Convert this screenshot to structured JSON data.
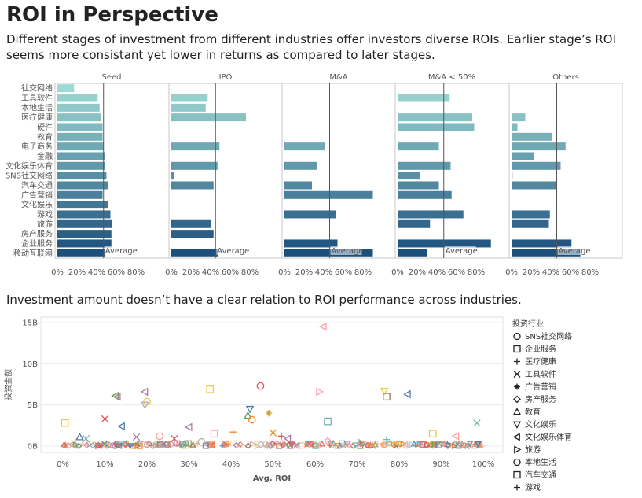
{
  "header": {
    "title": "ROI in Perspective",
    "subtitle": "Different stages of investment from different industries offer investors diverse ROIs. Earlier stage’s ROI seems more consistant yet lower in returns as compared to later stages."
  },
  "scatter_caption": "Investment amount doesn’t have a clear relation to ROI performance across industries.",
  "colors": {
    "panel_border": "#c8c8c8",
    "ref_line": "#555555",
    "bar_gradient": [
      "#9fd9d3",
      "#1b4f7c"
    ]
  },
  "chart_data": [
    {
      "type": "bar",
      "orientation": "horizontal",
      "facets": [
        "Seed",
        "IPO",
        "M&A",
        "M&A < 50%",
        "Others"
      ],
      "categories": [
        "社交网络",
        "工具软件",
        "本地生活",
        "医疗健康",
        "硬件",
        "教育",
        "电子商务",
        "金融",
        "文化娱乐体育",
        "SNS社交网络",
        "汽车交通",
        "广告营销",
        "文化娱乐",
        "游戏",
        "旅游",
        "房产服务",
        "企业服务",
        "移动互联网"
      ],
      "series": [
        {
          "name": "Seed",
          "values": [
            17,
            41,
            43,
            44,
            46,
            46,
            47,
            48,
            48,
            50,
            52,
            46,
            52,
            54,
            56,
            55,
            55,
            48
          ]
        },
        {
          "name": "IPO",
          "values": [
            null,
            37,
            35,
            76,
            null,
            null,
            49,
            null,
            47,
            3,
            43,
            null,
            null,
            null,
            40,
            43,
            null,
            48
          ]
        },
        {
          "name": "M&A",
          "values": [
            null,
            null,
            null,
            null,
            null,
            null,
            41,
            null,
            33,
            null,
            28,
            90,
            null,
            52,
            null,
            null,
            54,
            90
          ]
        },
        {
          "name": "M&A < 50%",
          "values": [
            null,
            53,
            null,
            76,
            78,
            null,
            42,
            null,
            54,
            23,
            42,
            55,
            null,
            67,
            33,
            null,
            95,
            30
          ]
        },
        {
          "name": "Others",
          "values": [
            null,
            null,
            null,
            14,
            6,
            41,
            55,
            23,
            50,
            1,
            45,
            null,
            null,
            39,
            38,
            null,
            61,
            70
          ]
        }
      ],
      "reference_values": [
        47,
        45,
        46,
        47,
        46
      ],
      "reference_label": "Average",
      "xticks": [
        "0%",
        "20%",
        "40%",
        "60%",
        "80%"
      ],
      "xlim": [
        0,
        100
      ]
    },
    {
      "type": "scatter",
      "xlabel": "Avg. ROI",
      "ylabel": "投资金额",
      "xticks": [
        "0%",
        "10%",
        "20%",
        "30%",
        "40%",
        "50%",
        "60%",
        "70%",
        "80%",
        "90%",
        "100%"
      ],
      "yticks": [
        "0B",
        "5B",
        "10B",
        "15B"
      ],
      "xlim": [
        0,
        100
      ],
      "ylim": [
        0,
        15
      ],
      "legend_title": "投资行业",
      "legend": [
        {
          "name": "SNS社交网络",
          "marker": "circle",
          "color": "#4e79a7"
        },
        {
          "name": "企业服务",
          "marker": "square",
          "color": "#f28e2b"
        },
        {
          "name": "医疗健康",
          "marker": "plus",
          "color": "#e15759"
        },
        {
          "name": "工具软件",
          "marker": "x",
          "color": "#76b7b2"
        },
        {
          "name": "广告营销",
          "marker": "asterisk",
          "color": "#59a14f"
        },
        {
          "name": "房产服务",
          "marker": "diamond",
          "color": "#edc948"
        },
        {
          "name": "教育",
          "marker": "triangle-up",
          "color": "#b07aa1"
        },
        {
          "name": "文化娱乐",
          "marker": "triangle-down",
          "color": "#ff9da7"
        },
        {
          "name": "文化娱乐体育",
          "marker": "triangle-left",
          "color": "#9c755f"
        },
        {
          "name": "旅游",
          "marker": "triangle-right",
          "color": "#bab0ac"
        },
        {
          "name": "本地生活",
          "marker": "circle",
          "color": "#4e79a7"
        },
        {
          "name": "汽车交通",
          "marker": "square",
          "color": "#f28e2b"
        },
        {
          "name": "游戏",
          "marker": "plus",
          "color": "#e15759"
        }
      ],
      "points": [
        {
          "x": 62,
          "y": 14.5,
          "m": "triangle-left",
          "c": "#ff9da7"
        },
        {
          "x": 47,
          "y": 7.3,
          "m": "circle",
          "c": "#e15759"
        },
        {
          "x": 35,
          "y": 6.9,
          "m": "square",
          "c": "#edc948"
        },
        {
          "x": 76.5,
          "y": 6.7,
          "m": "triangle-down",
          "c": "#edc948"
        },
        {
          "x": 61,
          "y": 6.6,
          "m": "triangle-right",
          "c": "#ff9da7"
        },
        {
          "x": 19.5,
          "y": 6.6,
          "m": "triangle-left",
          "c": "#b07aa1"
        },
        {
          "x": 82,
          "y": 6.3,
          "m": "triangle-left",
          "c": "#4e79a7"
        },
        {
          "x": 12.5,
          "y": 6.1,
          "m": "triangle-left",
          "c": "#59a14f"
        },
        {
          "x": 13,
          "y": 6.0,
          "m": "triangle-left",
          "c": "#b07aa1"
        },
        {
          "x": 77,
          "y": 6.0,
          "m": "square",
          "c": "#9c755f"
        },
        {
          "x": 20,
          "y": 5.4,
          "m": "circle",
          "c": "#edc948"
        },
        {
          "x": 19.5,
          "y": 5.0,
          "m": "triangle-down",
          "c": "#bab0ac"
        },
        {
          "x": 44.5,
          "y": 4.5,
          "m": "triangle-down",
          "c": "#4e79a7"
        },
        {
          "x": 49,
          "y": 4.0,
          "m": "asterisk",
          "c": "#c9a227"
        },
        {
          "x": 44,
          "y": 3.7,
          "m": "triangle-up",
          "c": "#59a14f"
        },
        {
          "x": 10,
          "y": 3.3,
          "m": "x",
          "c": "#e15759"
        },
        {
          "x": 45,
          "y": 3.2,
          "m": "circle",
          "c": "#f28e2b"
        },
        {
          "x": 63,
          "y": 3.0,
          "m": "square",
          "c": "#76b7b2"
        },
        {
          "x": 98.5,
          "y": 2.8,
          "m": "x",
          "c": "#76b7b2"
        },
        {
          "x": 0.5,
          "y": 2.8,
          "m": "square",
          "c": "#edc948"
        },
        {
          "x": 14,
          "y": 2.4,
          "m": "triangle-left",
          "c": "#4e79a7"
        },
        {
          "x": 30,
          "y": 2.3,
          "m": "triangle-left",
          "c": "#b07aa1"
        },
        {
          "x": 40.5,
          "y": 1.7,
          "m": "plus",
          "c": "#f28e2b"
        },
        {
          "x": 50,
          "y": 1.6,
          "m": "x",
          "c": "#f28e2b"
        },
        {
          "x": 52,
          "y": 1.2,
          "m": "plus",
          "c": "#e15759"
        },
        {
          "x": 88,
          "y": 1.5,
          "m": "square",
          "c": "#edc948"
        },
        {
          "x": 36,
          "y": 1.5,
          "m": "square",
          "c": "#ff9da7"
        },
        {
          "x": 93.5,
          "y": 1.2,
          "m": "triangle-left",
          "c": "#ff9da7"
        },
        {
          "x": 23,
          "y": 1.2,
          "m": "circle",
          "c": "#ff9da7"
        },
        {
          "x": 17.5,
          "y": 1.1,
          "m": "x",
          "c": "#b07aa1"
        },
        {
          "x": 4,
          "y": 1.1,
          "m": "triangle-up",
          "c": "#4e79a7"
        },
        {
          "x": 5.5,
          "y": 0.9,
          "m": "x",
          "c": "#76b7b2"
        },
        {
          "x": 26.5,
          "y": 0.9,
          "m": "x",
          "c": "#e15759"
        },
        {
          "x": 53.5,
          "y": 0.9,
          "m": "triangle-left",
          "c": "#b07aa1"
        },
        {
          "x": 77,
          "y": 0.8,
          "m": "plus",
          "c": "#76b7b2"
        },
        {
          "x": 63,
          "y": 0.6,
          "m": "diamond",
          "c": "#ff9da7"
        },
        {
          "x": 33,
          "y": 0.5,
          "m": "circle",
          "c": "#bab0ac"
        },
        {
          "x": 71,
          "y": 0.4,
          "m": "triangle-right",
          "c": "#bab0ac"
        }
      ]
    }
  ]
}
